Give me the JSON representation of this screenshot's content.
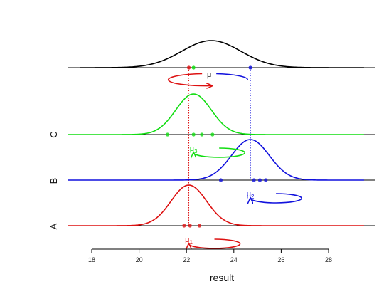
{
  "chart_data": {
    "type": "density-diagram",
    "xlabel": "result",
    "xlim": [
      17.7,
      29.3
    ],
    "ticks": [
      18,
      20,
      22,
      24,
      26,
      28
    ],
    "colors": {
      "A": "#dd1111",
      "B": "#1111dd",
      "C": "#11dd11",
      "top": "#000000",
      "mu": "#222222"
    },
    "rows": [
      {
        "key": "A",
        "label": "A",
        "mean": 22.1,
        "sd": 0.75,
        "points": [
          21.9,
          22.15,
          22.55
        ],
        "mu": {
          "text": "μ",
          "sub": "1"
        }
      },
      {
        "key": "B",
        "label": "B",
        "mean": 24.7,
        "sd": 0.8,
        "points": [
          23.45,
          24.85,
          25.1,
          25.35
        ],
        "mu": {
          "text": "μ",
          "sub": "2"
        }
      },
      {
        "key": "C",
        "label": "C",
        "mean": 22.3,
        "sd": 0.75,
        "points": [
          21.2,
          22.3,
          22.65,
          23.1
        ],
        "mu": {
          "text": "μ",
          "sub": "3"
        }
      }
    ],
    "top": {
      "mean": 23.05,
      "sd": 1.25,
      "points": [
        22.1,
        22.3,
        24.7
      ],
      "mu": {
        "text": "μ"
      }
    }
  }
}
